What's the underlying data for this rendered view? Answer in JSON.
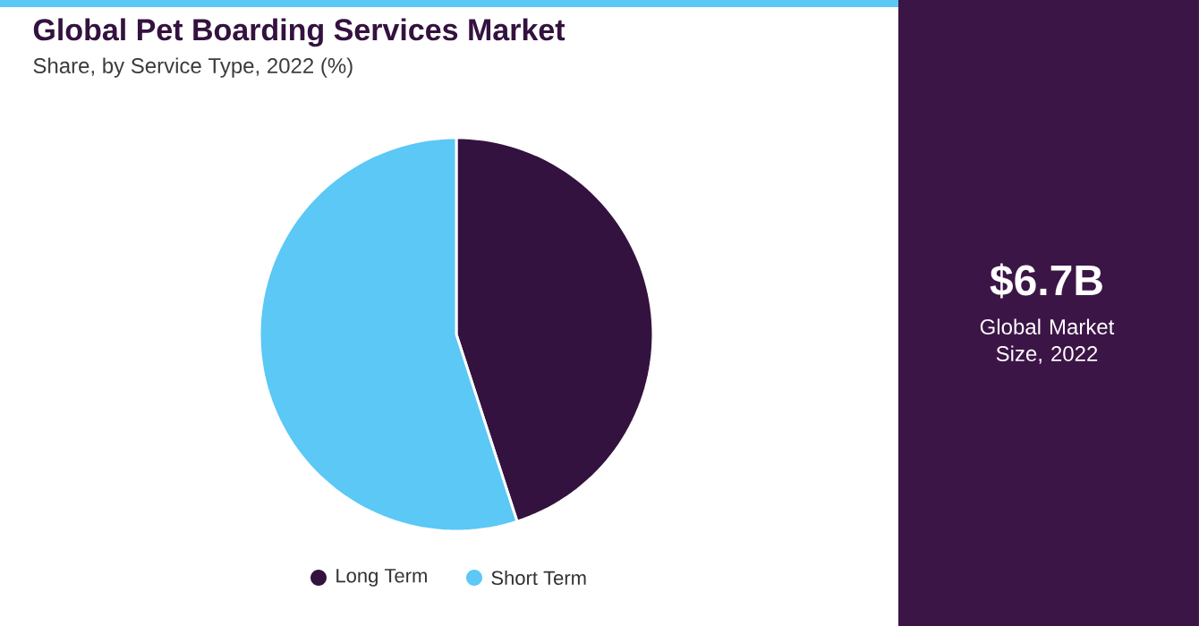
{
  "chart_data": {
    "type": "pie",
    "title": "Global Pet Boarding Services Market",
    "subtitle": "Share, by Service Type, 2022 (%)",
    "categories": [
      "Long Term",
      "Short Term"
    ],
    "values": [
      45,
      55
    ],
    "colors": [
      "#34123f",
      "#5bc8f5"
    ],
    "legend": "bottom",
    "annotations": [
      "$6.7B",
      "Global Market Size, 2022"
    ]
  }
}
